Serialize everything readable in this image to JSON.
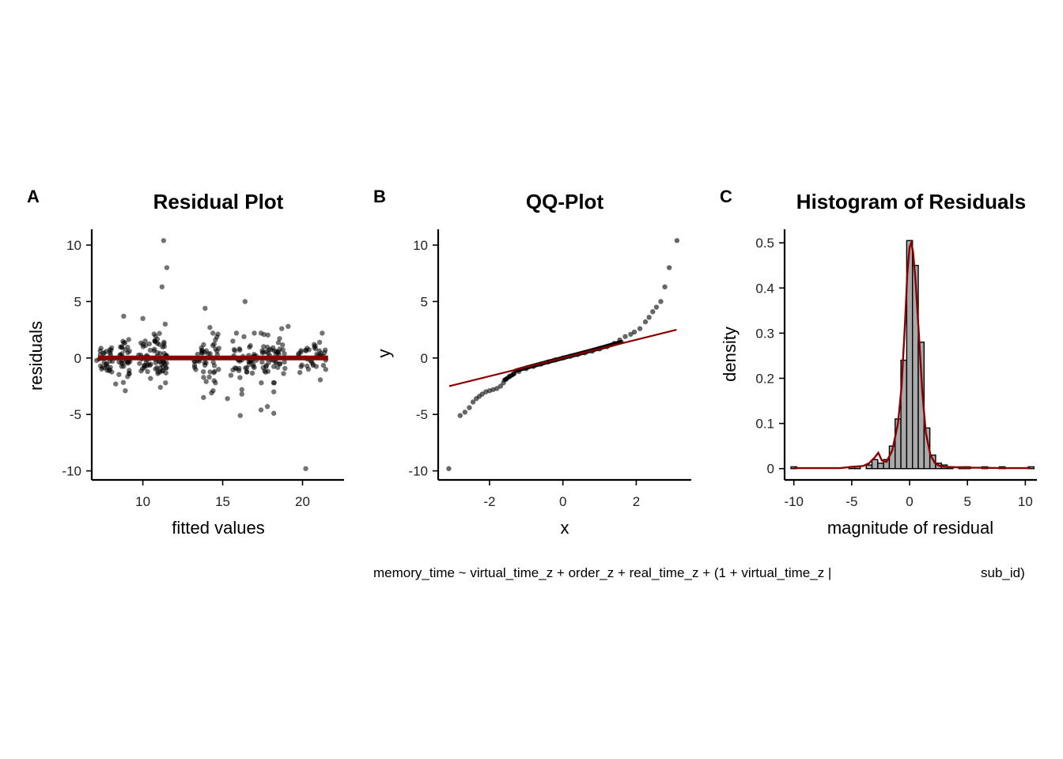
{
  "figure": {
    "caption_left": "memory_time ~ virtual_time_z + order_z + real_time_z + (1 + virtual_time_z |",
    "caption_right": "sub_id)"
  },
  "colors": {
    "fit_line": "#8b0000",
    "points": "#000000",
    "bars": "#a9a9a9"
  },
  "chart_data": [
    {
      "panel": "A",
      "type": "scatter",
      "title": "Residual Plot",
      "xlabel": "fitted values",
      "ylabel": "residuals",
      "xlim": [
        6.8,
        22.6
      ],
      "ylim": [
        -10.8,
        11.4
      ],
      "xticks": [
        10,
        15,
        20
      ],
      "yticks": [
        -10,
        -5,
        0,
        5,
        10
      ],
      "reference_line": {
        "x": [
          7.2,
          21.6
        ],
        "y": [
          0,
          0
        ]
      },
      "clusters": [
        {
          "x_center": 7.6,
          "spread": 0.5,
          "n": 30,
          "sd": 0.7
        },
        {
          "x_center": 8.9,
          "spread": 0.4,
          "n": 35,
          "sd": 0.9
        },
        {
          "x_center": 10.1,
          "spread": 0.4,
          "n": 30,
          "sd": 0.8
        },
        {
          "x_center": 11.1,
          "spread": 0.4,
          "n": 45,
          "sd": 1.0
        },
        {
          "x_center": 14.0,
          "spread": 0.8,
          "n": 45,
          "sd": 1.1
        },
        {
          "x_center": 16.3,
          "spread": 0.8,
          "n": 45,
          "sd": 1.0
        },
        {
          "x_center": 18.2,
          "spread": 0.8,
          "n": 50,
          "sd": 0.9
        },
        {
          "x_center": 20.6,
          "spread": 0.9,
          "n": 40,
          "sd": 0.8
        }
      ],
      "outliers": [
        {
          "x": 11.3,
          "y": 10.4
        },
        {
          "x": 11.5,
          "y": 8.0
        },
        {
          "x": 11.2,
          "y": 6.3
        },
        {
          "x": 16.4,
          "y": 5.0
        },
        {
          "x": 13.9,
          "y": 4.4
        },
        {
          "x": 8.8,
          "y": 3.7
        },
        {
          "x": 10.0,
          "y": 3.5
        },
        {
          "x": 11.4,
          "y": 3.0
        },
        {
          "x": 19.1,
          "y": 2.8
        },
        {
          "x": 14.2,
          "y": 2.7
        },
        {
          "x": 18.7,
          "y": 2.6
        },
        {
          "x": 8.3,
          "y": -2.3
        },
        {
          "x": 8.9,
          "y": -2.9
        },
        {
          "x": 11.1,
          "y": -2.6
        },
        {
          "x": 14.4,
          "y": -2.9
        },
        {
          "x": 13.8,
          "y": -3.5
        },
        {
          "x": 14.3,
          "y": -3.1
        },
        {
          "x": 16.2,
          "y": -2.8
        },
        {
          "x": 15.3,
          "y": -3.6
        },
        {
          "x": 16.2,
          "y": -3.2
        },
        {
          "x": 18.2,
          "y": -3.0
        },
        {
          "x": 17.8,
          "y": -4.3
        },
        {
          "x": 17.4,
          "y": -4.6
        },
        {
          "x": 18.2,
          "y": -4.9
        },
        {
          "x": 16.1,
          "y": -5.1
        },
        {
          "x": 20.2,
          "y": -9.8
        }
      ]
    },
    {
      "panel": "B",
      "type": "scatter",
      "title": "QQ-Plot",
      "xlabel": "x",
      "ylabel": "y",
      "xlim": [
        -3.4,
        3.5
      ],
      "ylim": [
        -10.8,
        11.4
      ],
      "xticks": [
        -2,
        0,
        2
      ],
      "yticks": [
        -10,
        -5,
        0,
        5,
        10
      ],
      "reference_line": {
        "x": [
          -3.1,
          3.1
        ],
        "y": [
          -2.5,
          2.5
        ]
      },
      "points": [
        {
          "x": -3.11,
          "y": -9.8
        },
        {
          "x": -2.8,
          "y": -5.1
        },
        {
          "x": -2.67,
          "y": -4.8
        },
        {
          "x": -2.55,
          "y": -4.4
        },
        {
          "x": -2.45,
          "y": -3.9
        },
        {
          "x": -2.36,
          "y": -3.6
        },
        {
          "x": -2.28,
          "y": -3.4
        },
        {
          "x": -2.2,
          "y": -3.2
        },
        {
          "x": -2.1,
          "y": -3.0
        },
        {
          "x": -2.0,
          "y": -2.9
        },
        {
          "x": -1.9,
          "y": -2.8
        },
        {
          "x": -1.8,
          "y": -2.7
        },
        {
          "x": -1.7,
          "y": -2.5
        },
        {
          "x": -1.62,
          "y": -2.2
        },
        {
          "x": -1.55,
          "y": -1.9
        },
        {
          "x": -1.45,
          "y": -1.6
        },
        {
          "x": -1.35,
          "y": -1.4
        },
        {
          "x": -1.2,
          "y": -1.2
        },
        {
          "x": -1.0,
          "y": -0.95
        },
        {
          "x": -0.8,
          "y": -0.75
        },
        {
          "x": -0.6,
          "y": -0.55
        },
        {
          "x": -0.4,
          "y": -0.35
        },
        {
          "x": -0.2,
          "y": -0.17
        },
        {
          "x": 0.0,
          "y": 0.0
        },
        {
          "x": 0.2,
          "y": 0.15
        },
        {
          "x": 0.4,
          "y": 0.3
        },
        {
          "x": 0.6,
          "y": 0.45
        },
        {
          "x": 0.8,
          "y": 0.6
        },
        {
          "x": 1.0,
          "y": 0.8
        },
        {
          "x": 1.2,
          "y": 1.0
        },
        {
          "x": 1.4,
          "y": 1.3
        },
        {
          "x": 1.55,
          "y": 1.6
        },
        {
          "x": 1.7,
          "y": 1.9
        },
        {
          "x": 1.85,
          "y": 2.1
        },
        {
          "x": 1.95,
          "y": 2.3
        },
        {
          "x": 2.1,
          "y": 2.6
        },
        {
          "x": 2.25,
          "y": 3.2
        },
        {
          "x": 2.35,
          "y": 3.6
        },
        {
          "x": 2.45,
          "y": 4.1
        },
        {
          "x": 2.55,
          "y": 4.5
        },
        {
          "x": 2.67,
          "y": 5.0
        },
        {
          "x": 2.78,
          "y": 6.3
        },
        {
          "x": 2.9,
          "y": 8.0
        },
        {
          "x": 3.11,
          "y": 10.4
        }
      ]
    },
    {
      "panel": "C",
      "type": "bar",
      "title": "Histogram of Residuals",
      "xlabel": "magnitude of residual",
      "ylabel": "density",
      "xlim": [
        -10.8,
        11.0
      ],
      "ylim": [
        -0.025,
        0.53
      ],
      "xticks": [
        -10,
        -5,
        0,
        5,
        10
      ],
      "yticks": [
        0.0,
        0.1,
        0.2,
        0.3,
        0.4,
        0.5
      ],
      "bin_width": 0.5,
      "bins": [
        {
          "x": -10.0,
          "density": 0.004
        },
        {
          "x": -5.0,
          "density": 0.004
        },
        {
          "x": -4.5,
          "density": 0.004
        },
        {
          "x": -3.5,
          "density": 0.008
        },
        {
          "x": -3.0,
          "density": 0.02
        },
        {
          "x": -2.5,
          "density": 0.012
        },
        {
          "x": -2.0,
          "density": 0.02
        },
        {
          "x": -1.5,
          "density": 0.05
        },
        {
          "x": -1.0,
          "density": 0.11
        },
        {
          "x": -0.5,
          "density": 0.24
        },
        {
          "x": 0.0,
          "density": 0.505
        },
        {
          "x": 0.5,
          "density": 0.45
        },
        {
          "x": 1.0,
          "density": 0.28
        },
        {
          "x": 1.5,
          "density": 0.09
        },
        {
          "x": 2.0,
          "density": 0.03
        },
        {
          "x": 2.5,
          "density": 0.012
        },
        {
          "x": 3.0,
          "density": 0.008
        },
        {
          "x": 3.5,
          "density": 0.004
        },
        {
          "x": 4.5,
          "density": 0.004
        },
        {
          "x": 5.0,
          "density": 0.004
        },
        {
          "x": 6.5,
          "density": 0.004
        },
        {
          "x": 8.0,
          "density": 0.004
        },
        {
          "x": 10.5,
          "density": 0.004
        }
      ],
      "density_curve": {
        "x": [
          -10.0,
          -6.0,
          -5.0,
          -4.5,
          -4.0,
          -3.5,
          -3.0,
          -2.7,
          -2.4,
          -2.0,
          -1.5,
          -1.0,
          -0.7,
          -0.4,
          -0.2,
          0.0,
          0.15,
          0.3,
          0.5,
          0.8,
          1.1,
          1.4,
          1.8,
          2.2,
          2.6,
          3.0,
          4.0,
          5.0,
          6.0,
          8.0,
          10.4
        ],
        "y": [
          0.001,
          0.001,
          0.004,
          0.005,
          0.006,
          0.012,
          0.025,
          0.035,
          0.018,
          0.015,
          0.04,
          0.1,
          0.18,
          0.32,
          0.43,
          0.49,
          0.5,
          0.48,
          0.42,
          0.3,
          0.17,
          0.08,
          0.03,
          0.012,
          0.006,
          0.004,
          0.003,
          0.002,
          0.002,
          0.001,
          0.001
        ]
      }
    }
  ]
}
